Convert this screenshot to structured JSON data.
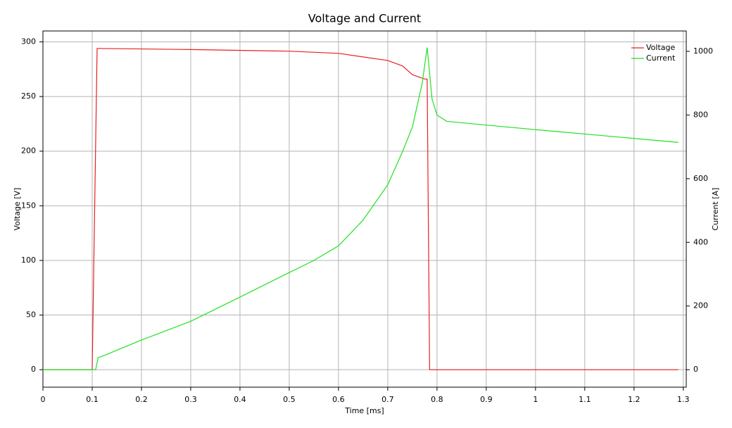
{
  "chart_data": {
    "type": "line",
    "title": "Voltage and Current",
    "x_label": "Time [ms]",
    "y_label": "Voltage [V]",
    "y2_label": "Current [A]",
    "xlim": [
      0,
      1.306
    ],
    "xticks": [
      0,
      0.1,
      0.2,
      0.3,
      0.4,
      0.5,
      0.6,
      0.7,
      0.8,
      0.9,
      1,
      1.1,
      1.2,
      1.3
    ],
    "ylim": [
      -16,
      310
    ],
    "yticks": [
      0,
      50,
      100,
      150,
      200,
      250,
      300
    ],
    "y2lim": [
      -55,
      1064
    ],
    "y2ticks": [
      0,
      200,
      400,
      600,
      800,
      1000
    ],
    "grid": true,
    "legend": "top-right",
    "series": [
      {
        "name": "Voltage",
        "color": "#e82020",
        "x": [
          0,
          0.1,
          0.11,
          0.115,
          0.3,
          0.5,
          0.6,
          0.7,
          0.73,
          0.75,
          0.775,
          0.78,
          0.785,
          1.29
        ],
        "values": [
          0,
          0,
          294,
          294,
          293,
          291.5,
          289.5,
          283,
          278,
          270,
          266,
          266,
          0,
          0
        ]
      },
      {
        "name": "Current",
        "color": "#22e022",
        "axis": "y2",
        "x": [
          0,
          0.107,
          0.112,
          0.12,
          0.2,
          0.3,
          0.4,
          0.5,
          0.55,
          0.6,
          0.65,
          0.7,
          0.73,
          0.75,
          0.77,
          0.78,
          0.79,
          0.8,
          0.82,
          1.0,
          1.29
        ],
        "values": [
          0,
          0,
          38,
          42,
          93,
          152,
          228,
          305,
          343,
          389,
          470,
          581,
          685,
          762,
          900,
          1012,
          850,
          800,
          780,
          754,
          714
        ]
      }
    ]
  }
}
